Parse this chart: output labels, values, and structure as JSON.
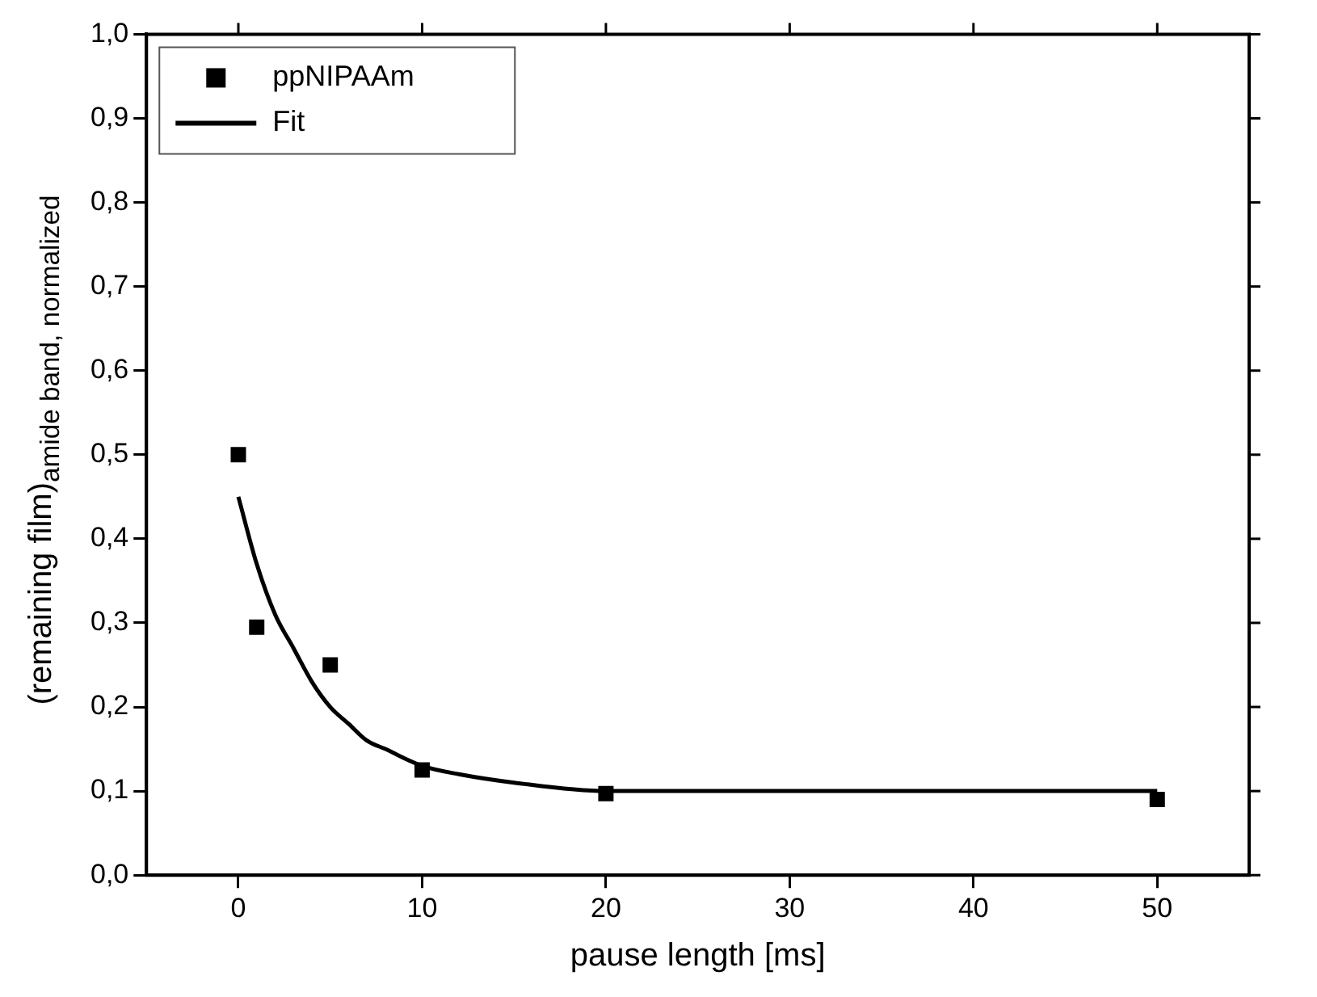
{
  "chart_data": {
    "type": "scatter",
    "xlabel": "pause length [ms]",
    "ylabel": "(remaining film)$_{amide band, normalized}$",
    "series": [
      {
        "name": "ppNIPAAm",
        "color": "#000000",
        "marker": "square",
        "x": [
          0,
          1,
          5,
          10,
          20,
          50
        ],
        "values": [
          0.5,
          0.295,
          0.25,
          0.125,
          0.097,
          0.09
        ]
      },
      {
        "name": "Fit",
        "type": "line",
        "color": "#000000",
        "marker": "none",
        "line_style": "solid",
        "x": [
          0,
          1,
          2,
          3,
          4,
          5,
          6,
          7,
          8,
          10,
          12,
          15,
          20,
          30,
          50
        ],
        "values": [
          0.45,
          0.37,
          0.31,
          0.27,
          0.23,
          0.2,
          0.18,
          0.16,
          0.15,
          0.13,
          0.12,
          0.11,
          0.1,
          0.1,
          0.1
        ]
      }
    ],
    "xlim": [
      -5,
      55
    ],
    "xticks": [
      0,
      10,
      20,
      30,
      40,
      50
    ],
    "ylim": [
      0,
      1
    ],
    "yticks": [
      {
        "value": 0,
        "label": "0,0"
      },
      {
        "value": 0.1,
        "label": "0,1"
      },
      {
        "value": 0.2,
        "label": "0,2"
      },
      {
        "value": 0.3,
        "label": "0,3"
      },
      {
        "value": 0.4,
        "label": "0,4"
      },
      {
        "value": 0.5,
        "label": "0,5"
      },
      {
        "value": 0.6,
        "label": "0,6"
      },
      {
        "value": 0.7,
        "label": "0,7"
      },
      {
        "value": 0.8,
        "label": "0,8"
      },
      {
        "value": 0.9,
        "label": "0,9"
      },
      {
        "value": 1,
        "label": "1,0"
      }
    ],
    "grid": false,
    "legend": "top left"
  }
}
